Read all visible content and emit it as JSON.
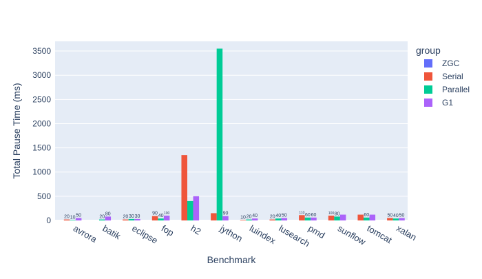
{
  "chart_data": {
    "type": "bar",
    "title": "",
    "xlabel": "Benchmark",
    "ylabel": "Total Pause Time (ms)",
    "ylim": [
      0,
      3700
    ],
    "yticks": [
      0,
      500,
      1000,
      1500,
      2000,
      2500,
      3000,
      3500
    ],
    "ytick_labels": [
      "0",
      "500",
      "1000",
      "1500",
      "2000",
      "2500",
      "3000",
      "3500"
    ],
    "grid": true,
    "legend_title": "group",
    "legend_position": "right",
    "categories": [
      "avrora",
      "batik",
      "eclipse",
      "fop",
      "h2",
      "jython",
      "luindex",
      "lusearch",
      "pmd",
      "sunflow",
      "tomcat",
      "xalan"
    ],
    "series": [
      {
        "name": "ZGC",
        "color": "#636efa",
        "values": [
          0,
          0,
          0,
          0,
          0,
          0,
          0,
          0,
          0,
          0,
          0,
          0
        ],
        "labels": [
          "",
          "",
          "",
          "",
          "",
          "",
          "",
          "",
          "",
          "",
          "",
          ""
        ]
      },
      {
        "name": "Serial",
        "color": "#ef553b",
        "values": [
          20,
          0,
          20,
          90,
          1350,
          150,
          10,
          20,
          110,
          100,
          120,
          50
        ],
        "labels": [
          "20",
          "",
          "20",
          "90",
          "",
          "",
          "10",
          "20",
          "110",
          "100",
          "",
          "50"
        ]
      },
      {
        "name": "Parallel",
        "color": "#00cc96",
        "values": [
          10,
          20,
          30,
          40,
          400,
          3550,
          20,
          40,
          60,
          80,
          60,
          40
        ],
        "labels": [
          "10",
          "20",
          "30",
          "40",
          "",
          "",
          "20",
          "40",
          "60",
          "80",
          "60",
          "40"
        ]
      },
      {
        "name": "G1",
        "color": "#ab63fa",
        "values": [
          50,
          80,
          30,
          100,
          500,
          90,
          40,
          50,
          60,
          120,
          120,
          50
        ],
        "labels": [
          "50",
          "80",
          "30",
          "100",
          "",
          "90",
          "40",
          "50",
          "60",
          "",
          "",
          "50"
        ]
      }
    ]
  }
}
